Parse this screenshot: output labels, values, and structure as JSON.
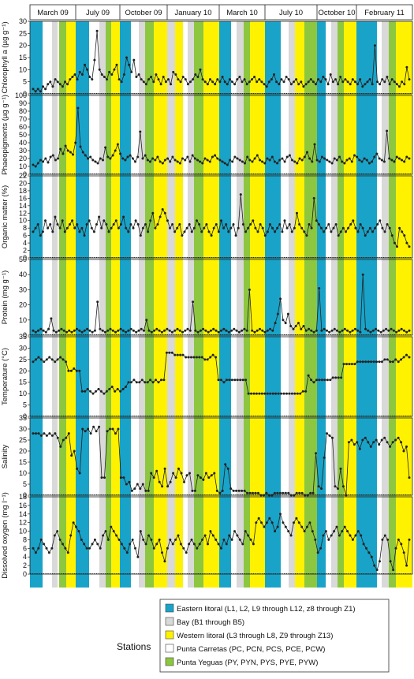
{
  "colors": {
    "eastern": "#1aa3c8",
    "bay": "#d9d9d9",
    "western": "#fff200",
    "carretas": "#ffffff",
    "yeguas": "#8dc63f",
    "line": "#222222"
  },
  "periods": [
    "March 09",
    "July 09",
    "October 09",
    "January 10",
    "March 10",
    "July 10",
    "October 10",
    "February 11"
  ],
  "legend": {
    "title": "Stations",
    "items": [
      {
        "label": "Eastern litoral (L1, L2, L9 through L12, z8 through Z1)",
        "color": "#1aa3c8"
      },
      {
        "label": "Bay (B1 through B5)",
        "color": "#d9d9d9"
      },
      {
        "label": "Western litoral (L3 through L8, Z9 through Z13)",
        "color": "#fff200"
      },
      {
        "label": "Punta Carretas (PC, PCN, PCS, PCE, PCW)",
        "color": "#ffffff"
      },
      {
        "label": "Punta Yeguas (PY, PYN, PYS, PYE, PYW)",
        "color": "#8dc63f"
      }
    ]
  },
  "chart_data": {
    "type": "line",
    "x_label": "",
    "categories": [
      "March 09",
      "July 09",
      "October 09",
      "January 10",
      "March 10",
      "July 10",
      "October 10",
      "February 11"
    ],
    "station_sequence_per_period": [
      "Eastern litoral",
      "Punta Carretas",
      "Bay",
      "Punta Yeguas",
      "Western litoral"
    ],
    "panels": [
      {
        "ylabel": "Chlorophyll a (µg g⁻¹)",
        "ylim": [
          0,
          30
        ],
        "yticks": [
          0,
          5,
          10,
          15,
          20,
          25,
          30
        ],
        "series": [
          2,
          1,
          2,
          1,
          3,
          2,
          4,
          5,
          3,
          6,
          5,
          4,
          3,
          5,
          4,
          6,
          7,
          8,
          6,
          9,
          8,
          12,
          10,
          7,
          6,
          14,
          26,
          10,
          8,
          7,
          6,
          9,
          8,
          10,
          12,
          6,
          5,
          8,
          15,
          12,
          9,
          14,
          7,
          8,
          6,
          5,
          4,
          6,
          7,
          5,
          8,
          6,
          4,
          7,
          5,
          6,
          4,
          9,
          8,
          6,
          5,
          7,
          6,
          4,
          5,
          6,
          8,
          7,
          10,
          6,
          5,
          4,
          6,
          5,
          4,
          6,
          5,
          7,
          5,
          4,
          6,
          5,
          4,
          6,
          7,
          5,
          6,
          4,
          5,
          6,
          7,
          5,
          6,
          5,
          4,
          3,
          5,
          6,
          8,
          5,
          4,
          6,
          5,
          7,
          6,
          4,
          5,
          6,
          4,
          5,
          3,
          4,
          5,
          6,
          5,
          4,
          6,
          5,
          7,
          6,
          4,
          8,
          5,
          6,
          4,
          7,
          5,
          6,
          5,
          4,
          6,
          5,
          4,
          6,
          3,
          4,
          5,
          6,
          4,
          20,
          5,
          4,
          6,
          5,
          7,
          4,
          6,
          5,
          4,
          3,
          5,
          4,
          11,
          6
        ]
      },
      {
        "ylabel": "Phaeopigments (µg g⁻¹)",
        "ylim": [
          0,
          100
        ],
        "yticks": [
          0,
          10,
          20,
          30,
          40,
          50,
          60,
          70,
          80,
          90,
          100
        ],
        "series": [
          12,
          10,
          14,
          18,
          16,
          20,
          15,
          22,
          24,
          18,
          20,
          32,
          26,
          36,
          30,
          28,
          25,
          40,
          84,
          35,
          28,
          24,
          20,
          22,
          18,
          16,
          14,
          20,
          18,
          34,
          22,
          20,
          24,
          30,
          38,
          26,
          20,
          18,
          22,
          24,
          20,
          16,
          22,
          54,
          20,
          24,
          18,
          16,
          20,
          18,
          22,
          16,
          14,
          18,
          20,
          16,
          22,
          18,
          16,
          14,
          20,
          18,
          22,
          16,
          24,
          20,
          18,
          16,
          14,
          20,
          18,
          16,
          22,
          24,
          20,
          18,
          16,
          14,
          12,
          18,
          16,
          22,
          20,
          18,
          16,
          14,
          22,
          18,
          16,
          20,
          24,
          18,
          16,
          14,
          20,
          18,
          22,
          16,
          14,
          18,
          20,
          16,
          22,
          24,
          18,
          16,
          14,
          20,
          18,
          22,
          28,
          20,
          16,
          38,
          18,
          16,
          22,
          20,
          18,
          16,
          14,
          20,
          18,
          22,
          16,
          14,
          18,
          20,
          16,
          24,
          22,
          18,
          16,
          20,
          18,
          14,
          16,
          22,
          26,
          20,
          18,
          16,
          55,
          20,
          18,
          16,
          22,
          20,
          18,
          16,
          22,
          20
        ]
      },
      {
        "ylabel": "Organic matter (%)",
        "ylim": [
          0,
          22
        ],
        "yticks": [
          0,
          2,
          4,
          6,
          8,
          10,
          12,
          14,
          16,
          18,
          20,
          22
        ],
        "series": [
          7,
          8,
          9,
          6,
          7,
          10,
          8,
          9,
          7,
          11,
          9,
          8,
          10,
          7,
          8,
          9,
          10,
          8,
          9,
          7,
          8,
          6,
          9,
          10,
          8,
          7,
          9,
          11,
          8,
          10,
          9,
          7,
          8,
          9,
          10,
          8,
          9,
          11,
          8,
          7,
          9,
          8,
          10,
          9,
          6,
          8,
          9,
          7,
          10,
          12,
          8,
          9,
          11,
          13,
          12,
          10,
          8,
          9,
          7,
          8,
          9,
          6,
          7,
          8,
          9,
          7,
          8,
          10,
          9,
          7,
          8,
          9,
          7,
          6,
          8,
          9,
          7,
          10,
          8,
          9,
          7,
          8,
          9,
          6,
          8,
          17,
          9,
          7,
          8,
          9,
          10,
          8,
          7,
          9,
          8,
          6,
          7,
          9,
          8,
          7,
          8,
          9,
          7,
          10,
          8,
          9,
          7,
          8,
          12,
          9,
          8,
          7,
          6,
          9,
          8,
          16,
          10,
          9,
          8,
          7,
          8,
          9,
          7,
          8,
          9,
          6,
          7,
          8,
          7,
          8,
          9,
          10,
          8,
          7,
          9,
          8,
          6,
          7,
          8,
          7,
          8,
          9,
          10,
          8,
          7,
          9,
          8,
          6,
          4,
          3,
          8,
          7,
          6,
          4,
          3
        ]
      },
      {
        "ylabel": "Protein (mg g⁻¹)",
        "ylim": [
          0,
          50
        ],
        "yticks": [
          0,
          10,
          20,
          30,
          40,
          50
        ],
        "series": [
          3,
          2,
          3,
          4,
          3,
          2,
          4,
          11,
          3,
          2,
          3,
          4,
          3,
          2,
          3,
          2,
          3,
          4,
          3,
          2,
          3,
          4,
          3,
          2,
          3,
          22,
          4,
          3,
          2,
          3,
          4,
          3,
          2,
          3,
          4,
          3,
          2,
          3,
          4,
          3,
          2,
          3,
          4,
          3,
          10,
          3,
          2,
          3,
          4,
          3,
          2,
          3,
          4,
          3,
          2,
          3,
          4,
          3,
          2,
          3,
          4,
          3,
          22,
          3,
          2,
          3,
          4,
          3,
          2,
          3,
          4,
          3,
          2,
          3,
          4,
          3,
          2,
          3,
          4,
          3,
          2,
          3,
          4,
          3,
          30,
          3,
          2,
          3,
          4,
          3,
          2,
          3,
          4,
          3,
          8,
          14,
          24,
          10,
          8,
          14,
          6,
          4,
          6,
          8,
          4,
          6,
          3,
          4,
          3,
          2,
          3,
          31,
          3,
          4,
          3,
          2,
          3,
          4,
          3,
          2,
          3,
          4,
          3,
          2,
          3,
          4,
          3,
          2,
          40,
          4,
          3,
          2,
          3,
          4,
          3,
          2,
          3,
          4,
          3,
          4,
          3,
          2,
          3,
          4,
          3,
          2,
          3
        ]
      },
      {
        "ylabel": "Temperature (°C)",
        "ylim": [
          0,
          35
        ],
        "yticks": [
          0,
          5,
          10,
          15,
          20,
          25,
          30,
          35
        ],
        "series": [
          24,
          25,
          26,
          25,
          24,
          25,
          26,
          25,
          24,
          25,
          26,
          25,
          24,
          20,
          20,
          21,
          20,
          20,
          11,
          11,
          12,
          11,
          10,
          11,
          12,
          11,
          10,
          11,
          12,
          13,
          11,
          12,
          11,
          12,
          13,
          15,
          15,
          16,
          15,
          15,
          16,
          15,
          15,
          16,
          15,
          16,
          15,
          16,
          16,
          28,
          28,
          28,
          27,
          27,
          27,
          27,
          26,
          26,
          26,
          26,
          26,
          26,
          26,
          25,
          25,
          26,
          27,
          26,
          16,
          16,
          15,
          16,
          16,
          16,
          16,
          16,
          16,
          16,
          16,
          10,
          10,
          10,
          10,
          10,
          10,
          10,
          10,
          10,
          10,
          10,
          10,
          10,
          10,
          10,
          10,
          10,
          10,
          10,
          10,
          11,
          11,
          18,
          16,
          15,
          16,
          16,
          16,
          16,
          16,
          16,
          17,
          17,
          17,
          17,
          23,
          23,
          23,
          23,
          23,
          24,
          24,
          24,
          24,
          24,
          24,
          24,
          24,
          24,
          24,
          25,
          25,
          24,
          24,
          25,
          24,
          25,
          26,
          27,
          26
        ]
      },
      {
        "ylabel": "Salinity",
        "ylim": [
          0,
          35
        ],
        "yticks": [
          0,
          5,
          10,
          15,
          20,
          25,
          30,
          35
        ],
        "series": [
          28,
          28,
          28,
          27,
          28,
          27,
          28,
          27,
          28,
          26,
          22,
          25,
          26,
          28,
          18,
          20,
          12,
          10,
          30,
          29,
          30,
          28,
          31,
          29,
          31,
          8,
          8,
          29,
          30,
          30,
          28,
          30,
          8,
          8,
          5,
          6,
          2,
          3,
          5,
          3,
          5,
          2,
          2,
          10,
          8,
          11,
          6,
          4,
          12,
          4,
          6,
          10,
          8,
          12,
          10,
          6,
          9,
          10,
          2,
          2,
          9,
          8,
          7,
          10,
          8,
          9,
          10,
          2,
          1,
          2,
          14,
          12,
          3,
          2,
          2,
          2,
          2,
          2,
          1,
          1,
          1,
          1,
          1,
          0,
          0,
          1,
          0,
          0,
          1,
          1,
          1,
          1,
          1,
          1,
          0,
          0,
          1,
          1,
          1,
          0,
          0,
          1,
          1,
          19,
          4,
          3,
          17,
          28,
          27,
          26,
          4,
          3,
          12,
          4,
          0,
          24,
          25,
          23,
          24,
          21,
          25,
          26,
          24,
          22,
          24,
          25,
          23,
          25,
          26,
          24,
          22,
          24,
          25,
          26,
          24,
          20,
          22,
          8
        ]
      },
      {
        "ylabel": "Dissolved oxygen (mg l⁻¹)",
        "ylim": [
          0,
          18
        ],
        "yticks": [
          0,
          2,
          4,
          6,
          8,
          10,
          12,
          14,
          16,
          18
        ],
        "series": [
          6,
          5,
          6,
          8,
          7,
          6,
          5,
          6,
          9,
          10,
          8,
          7,
          6,
          5,
          9,
          12,
          11,
          10,
          8,
          7,
          6,
          6,
          7,
          8,
          7,
          6,
          9,
          10,
          8,
          11,
          10,
          9,
          8,
          7,
          6,
          5,
          7,
          8,
          6,
          4,
          10,
          8,
          7,
          9,
          8,
          6,
          7,
          8,
          5,
          3,
          6,
          8,
          7,
          8,
          9,
          7,
          6,
          5,
          7,
          8,
          7,
          6,
          7,
          8,
          9,
          7,
          10,
          9,
          8,
          7,
          6,
          8,
          7,
          9,
          8,
          10,
          9,
          8,
          7,
          10,
          9,
          8,
          7,
          12,
          13,
          12,
          11,
          12,
          13,
          12,
          10,
          11,
          14,
          12,
          11,
          10,
          9,
          12,
          13,
          12,
          11,
          10,
          11,
          12,
          10,
          8,
          5,
          6,
          9,
          10,
          8,
          9,
          10,
          11,
          9,
          10,
          11,
          10,
          9,
          8,
          9,
          10,
          9,
          7,
          6,
          5,
          4,
          2,
          1,
          3,
          8,
          9,
          8,
          3,
          1,
          6,
          8,
          7,
          5,
          2,
          8
        ]
      }
    ]
  }
}
